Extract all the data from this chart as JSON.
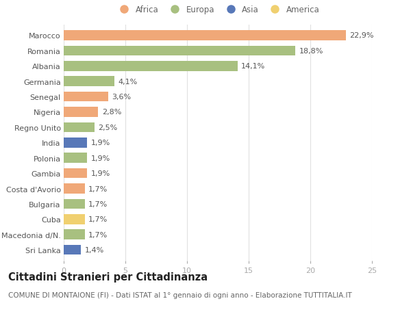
{
  "countries": [
    "Marocco",
    "Romania",
    "Albania",
    "Germania",
    "Senegal",
    "Nigeria",
    "Regno Unito",
    "India",
    "Polonia",
    "Gambia",
    "Costa d'Avorio",
    "Bulgaria",
    "Cuba",
    "Macedonia d/N.",
    "Sri Lanka"
  ],
  "values": [
    22.9,
    18.8,
    14.1,
    4.1,
    3.6,
    2.8,
    2.5,
    1.9,
    1.9,
    1.9,
    1.7,
    1.7,
    1.7,
    1.7,
    1.4
  ],
  "labels": [
    "22,9%",
    "18,8%",
    "14,1%",
    "4,1%",
    "3,6%",
    "2,8%",
    "2,5%",
    "1,9%",
    "1,9%",
    "1,9%",
    "1,7%",
    "1,7%",
    "1,7%",
    "1,7%",
    "1,4%"
  ],
  "continents": [
    "Africa",
    "Europa",
    "Europa",
    "Europa",
    "Africa",
    "Africa",
    "Europa",
    "Asia",
    "Europa",
    "Africa",
    "Africa",
    "Europa",
    "America",
    "Europa",
    "Asia"
  ],
  "colors": {
    "Africa": "#F0A878",
    "Europa": "#A8C080",
    "Asia": "#5878B8",
    "America": "#F0D070"
  },
  "legend_order": [
    "Africa",
    "Europa",
    "Asia",
    "America"
  ],
  "title": "Cittadini Stranieri per Cittadinanza",
  "subtitle": "COMUNE DI MONTAIONE (FI) - Dati ISTAT al 1° gennaio di ogni anno - Elaborazione TUTTITALIA.IT",
  "xlim": [
    0,
    25
  ],
  "xticks": [
    0,
    5,
    10,
    15,
    20,
    25
  ],
  "bg_color": "#ffffff",
  "grid_color": "#e0e0e0",
  "bar_height": 0.65,
  "title_fontsize": 10.5,
  "subtitle_fontsize": 7.5,
  "label_fontsize": 8,
  "tick_fontsize": 8,
  "legend_fontsize": 8.5
}
